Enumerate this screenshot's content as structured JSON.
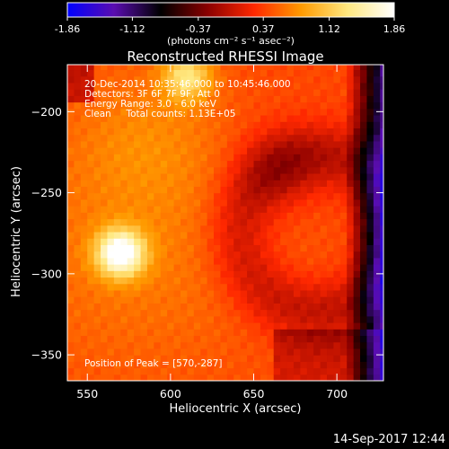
{
  "colorbar": {
    "tick_labels": [
      "-1.86",
      "-1.12",
      "-0.37",
      "0.37",
      "1.12",
      "1.86"
    ],
    "range": [
      -1.86,
      1.86
    ],
    "colors": [
      "#0000ff",
      "#5a0db0",
      "#000000",
      "#8a0000",
      "#ff2800",
      "#ff9a00",
      "#ffe880",
      "#ffffff"
    ],
    "unit_label": "(photons cm⁻² s⁻¹ asec⁻²)"
  },
  "chart_data": {
    "type": "heatmap",
    "title": "Reconstructed RHESSI Image",
    "xlabel": "Heliocentric X (arcsec)",
    "ylabel": "Heliocentric Y (arcsec)",
    "xlim": [
      538,
      728
    ],
    "ylim": [
      -366,
      -171
    ],
    "xticks": [
      550,
      600,
      650,
      700
    ],
    "yticks": [
      -350,
      -300,
      -250,
      -200
    ],
    "annotations": [
      "20-Dec-2014 10:35:46.000 to 10:45:46.000",
      "Detectors: 3F 6F 7F 9F, Att 0",
      "Energy Range: 3.0 - 6.0 keV",
      "Clean     Total counts: 1.13E+05"
    ],
    "peak_label": "Position of Peak = [570,-287]",
    "peak": {
      "x": 570,
      "y": -287,
      "value": 1.86
    },
    "secondary_peak": {
      "x": 610,
      "y": -178,
      "value": 1.3
    }
  },
  "footer": {
    "timestamp": "14-Sep-2017 12:44"
  }
}
